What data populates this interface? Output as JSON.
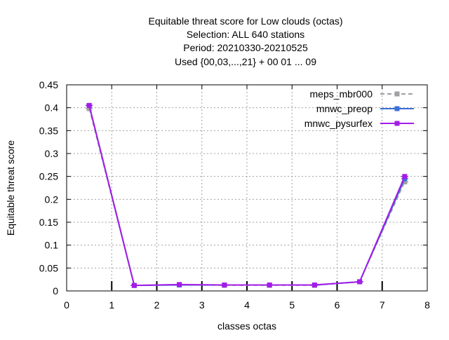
{
  "chart_data": {
    "type": "line",
    "title_lines": [
      "Equitable threat score  for Low clouds (octas)",
      "Selection: ALL    640 stations",
      "Period: 20210330-20210525",
      "Used {00,03,...,21} + 00 01 ... 09"
    ],
    "xlabel": "classes octas",
    "ylabel": "Equitable threat score",
    "xlim": [
      0,
      8
    ],
    "ylim": [
      0,
      0.45
    ],
    "x_ticks": [
      0,
      1,
      2,
      3,
      4,
      5,
      6,
      7,
      8
    ],
    "x_tick_labels": [
      "0",
      "1",
      "2",
      "3",
      "4",
      "5",
      "6",
      "7",
      "8"
    ],
    "y_ticks": [
      0,
      0.05,
      0.1,
      0.15,
      0.2,
      0.25,
      0.3,
      0.35,
      0.4,
      0.45
    ],
    "y_tick_labels": [
      "0",
      "0.05",
      "0.1",
      "0.15",
      "0.2",
      "0.25",
      "0.3",
      "0.35",
      "0.4",
      "0.45"
    ],
    "grid": true,
    "legend_position": "top-right",
    "x": [
      0.5,
      1.5,
      2.5,
      3.5,
      4.5,
      5.5,
      6.5,
      7.5
    ],
    "series": [
      {
        "name": "meps_mbr000",
        "color": "#a0a0a4",
        "dash": "dashed",
        "values": [
          0.398,
          0.012,
          0.013,
          0.012,
          0.012,
          0.012,
          0.02,
          0.238
        ]
      },
      {
        "name": "mnwc_preop",
        "color": "#3a6fd8",
        "dash": "solid",
        "values": [
          0.405,
          0.012,
          0.013,
          0.013,
          0.013,
          0.013,
          0.02,
          0.245
        ]
      },
      {
        "name": "mnwc_pysurfex",
        "color": "#a31de8",
        "dash": "solid",
        "values": [
          0.405,
          0.012,
          0.014,
          0.013,
          0.013,
          0.013,
          0.02,
          0.25
        ]
      }
    ]
  }
}
